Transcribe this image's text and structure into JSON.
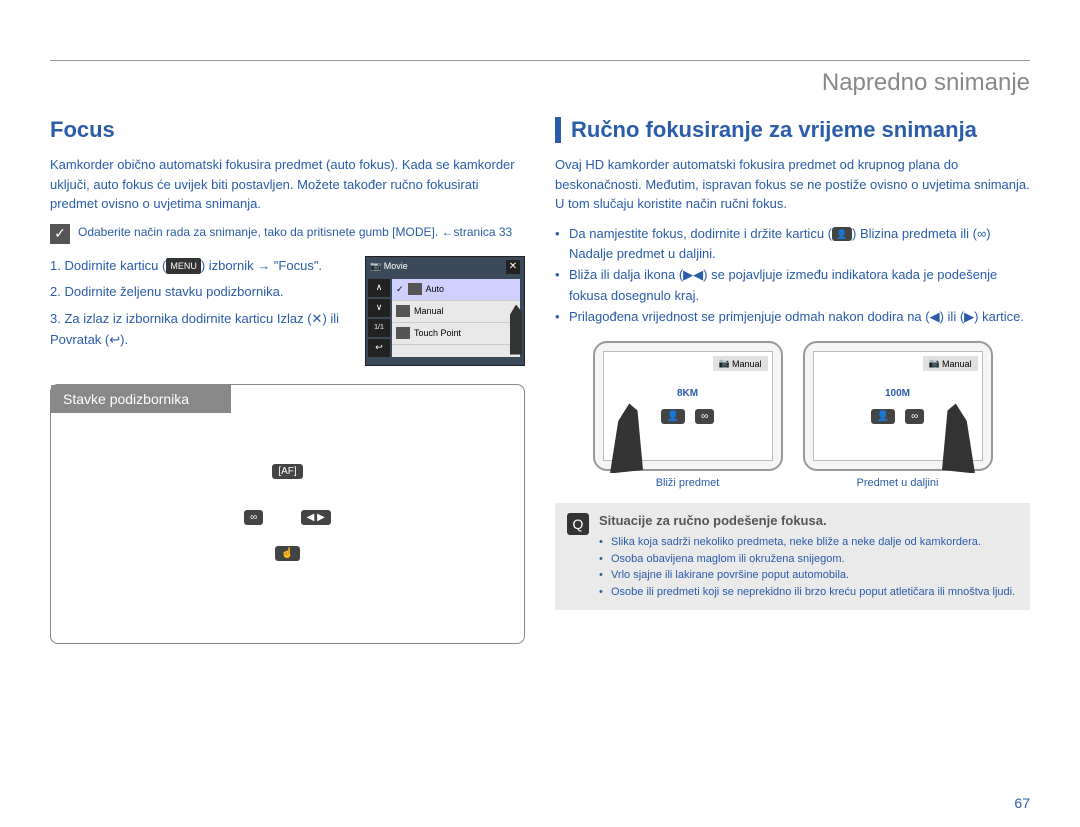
{
  "header": {
    "title": "Napredno snimanje"
  },
  "left": {
    "heading": "Focus",
    "intro": "Kamkorder obično automatski fokusira predmet (auto fokus). Kada se kamkorder uključi, auto fokus će uvijek biti postavljen. Možete također ručno fokusirati predmet ovisno o uvjetima snimanja.",
    "note": "Odaberite način rada za snimanje, tako da pritisnete gumb [MODE]. ←stranica 33",
    "steps": [
      {
        "pre": "Dodirnite karticu (",
        "tag": "MENU",
        "post": ") izbornik  → \"Focus\"."
      },
      {
        "text": "Dodirnite željenu stavku podizbornika."
      },
      {
        "text": "Za izlaz iz izbornika dodirnite karticu Izlaz (✕) ili Povratak (↩)."
      }
    ],
    "screen": {
      "movie": "Movie",
      "items": [
        {
          "icon": "auto",
          "label": "Auto"
        },
        {
          "icon": "manual",
          "label": "Manual"
        },
        {
          "icon": "touch",
          "label": "Touch Point"
        }
      ],
      "page": "1/1"
    },
    "subbox": {
      "title": "Stavke podizbornika"
    }
  },
  "right": {
    "heading": "Ručno fokusiranje za vrijeme snimanja",
    "p1": "Ovaj HD kamkorder automatski fokusira predmet od krupnog plana do beskonačnosti. Međutim, ispravan fokus se ne postiže ovisno o uvjetima snimanja. U tom slučaju koristite način ručni fokus.",
    "bullets": [
      {
        "pre": "Da namjestite fokus, dodirnite i držite karticu (",
        "icon": "person",
        "post": ") Blizina predmeta ili (∞) Nadalje predmet u daljini."
      },
      {
        "text": "Bliža ili dalja ikona (▶◀) se pojavljuje između indikatora kada je podešenje fokusa dosegnulo kraj."
      },
      {
        "text": "Prilagođena vrijednost se primjenjuje odmah nakon dodira na (◀) ili (▶) kartice."
      }
    ],
    "devices": [
      {
        "label": "Manual",
        "center": "8KM",
        "caption": "Bliži predmet"
      },
      {
        "label": "Manual",
        "center": "100M",
        "caption": "Predmet u daljini"
      }
    ],
    "tips": {
      "title": "Situacije za ručno podešenje fokusa.",
      "items": [
        "Slika koja sadrži nekoliko predmeta, neke bliže a neke dalje od kamkordera.",
        "Osoba obavijena maglom ili okružena snijegom.",
        "Vrlo sjajne ili lakirane površine poput automobila.",
        "Osobe ili predmeti koji se neprekidno ili brzo kreću poput atletičara ili mnoštva ljudi."
      ]
    }
  },
  "page_number": "67"
}
